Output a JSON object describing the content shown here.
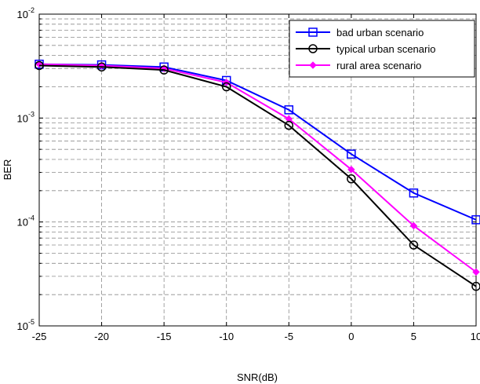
{
  "chart_data": {
    "type": "line",
    "xlabel": "SNR(dB)",
    "ylabel": "BER",
    "xlim": [
      -25,
      10
    ],
    "ylim": [
      1e-05,
      0.01
    ],
    "yscale": "log",
    "grid": true,
    "legend_position": "top-right",
    "x_ticks": [
      "-25",
      "-20",
      "-15",
      "-10",
      "-5",
      "0",
      "5",
      "10"
    ],
    "y_tick_labels": [
      {
        "base": "10",
        "exp": "-2"
      },
      {
        "base": "10",
        "exp": "-3"
      },
      {
        "base": "10",
        "exp": "-4"
      },
      {
        "base": "10",
        "exp": "-5"
      }
    ],
    "x": [
      -25,
      -20,
      -15,
      -10,
      -5,
      0,
      5,
      10
    ],
    "series": [
      {
        "name": "bad urban scenario",
        "color": "#0000ff",
        "marker": "square",
        "values": [
          0.0033,
          0.00325,
          0.0031,
          0.0023,
          0.0012,
          0.00045,
          0.00019,
          0.000105
        ]
      },
      {
        "name": "typical urban scenario",
        "color": "#000000",
        "marker": "circle",
        "values": [
          0.0032,
          0.0031,
          0.0029,
          0.002,
          0.00085,
          0.00026,
          6e-05,
          2.4e-05
        ]
      },
      {
        "name": "rural area scenario",
        "color": "#ff00ff",
        "marker": "diamond",
        "values": [
          0.0033,
          0.0032,
          0.003,
          0.0022,
          0.00098,
          0.00032,
          9.2e-05,
          3.3e-05
        ]
      }
    ]
  }
}
